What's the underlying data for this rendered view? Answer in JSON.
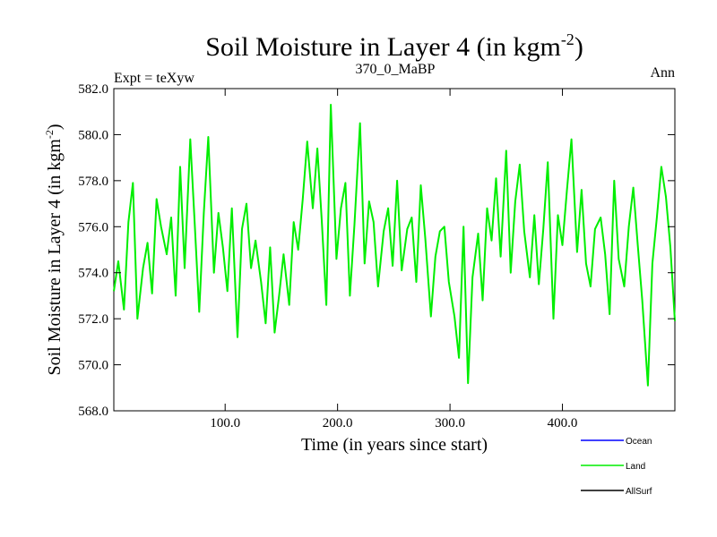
{
  "chart_data": {
    "type": "line",
    "title_main": "Soil Moisture in Layer 4 (in kgm",
    "title_sup": "-2",
    "title_end": ")",
    "subtitle_left": "Expt = teXyw",
    "subtitle_center": "370_0_MaBP",
    "subtitle_right": "Ann",
    "xlabel": "Time (in years since start)",
    "ylabel_main": "Soil Moisture in Layer 4 (in kgm",
    "ylabel_sup": "-2",
    "ylabel_end": ")",
    "xlim": [
      1,
      500
    ],
    "ylim": [
      568.0,
      582.0
    ],
    "x_ticks": [
      100.0,
      200.0,
      300.0,
      400.0
    ],
    "x_tick_labels": [
      "100.0",
      "200.0",
      "300.0",
      "400.0"
    ],
    "y_ticks": [
      568.0,
      570.0,
      572.0,
      574.0,
      576.0,
      578.0,
      580.0,
      582.0
    ],
    "y_tick_labels": [
      "568.0",
      "570.0",
      "572.0",
      "574.0",
      "576.0",
      "578.0",
      "580.0",
      "582.0"
    ],
    "legend_position": "bottom-right",
    "legend": [
      {
        "name": "Ocean",
        "color": "#0000ff"
      },
      {
        "name": "Land",
        "color": "#00ee00"
      },
      {
        "name": "AllSurf",
        "color": "#000000"
      }
    ],
    "series": [
      {
        "name": "Land",
        "color": "#00ee00",
        "x": [
          1,
          5,
          10,
          14,
          18,
          22,
          27,
          31,
          35,
          39,
          43,
          48,
          52,
          56,
          60,
          64,
          69,
          73,
          77,
          81,
          85,
          90,
          94,
          98,
          102,
          106,
          111,
          115,
          119,
          123,
          127,
          132,
          136,
          140,
          144,
          148,
          152,
          157,
          161,
          165,
          169,
          173,
          178,
          182,
          186,
          190,
          194,
          199,
          203,
          207,
          211,
          215,
          220,
          224,
          228,
          232,
          236,
          241,
          245,
          249,
          253,
          257,
          262,
          266,
          270,
          274,
          278,
          283,
          287,
          291,
          295,
          299,
          304,
          308,
          312,
          316,
          320,
          325,
          329,
          333,
          337,
          341,
          345,
          350,
          354,
          358,
          362,
          366,
          371,
          375,
          379,
          383,
          387,
          392,
          396,
          400,
          404,
          408,
          413,
          417,
          421,
          425,
          429,
          434,
          438,
          442,
          446,
          450,
          455,
          459,
          463,
          467,
          471,
          476,
          480,
          484,
          488,
          492,
          496,
          500
        ],
        "values": [
          573.2,
          574.5,
          572.4,
          576.2,
          577.9,
          572.0,
          574.2,
          575.3,
          573.1,
          577.2,
          576.0,
          574.8,
          576.4,
          573.0,
          578.6,
          574.2,
          579.8,
          576.1,
          572.3,
          576.6,
          579.9,
          574.0,
          576.6,
          575.1,
          573.2,
          576.8,
          571.2,
          575.9,
          577.0,
          574.2,
          575.4,
          573.6,
          571.8,
          575.1,
          571.4,
          573.0,
          574.8,
          572.6,
          576.2,
          575.0,
          577.2,
          579.7,
          576.8,
          579.4,
          576.2,
          572.6,
          581.3,
          574.6,
          576.8,
          577.9,
          573.0,
          576.1,
          580.5,
          574.4,
          577.1,
          576.2,
          573.4,
          575.8,
          576.8,
          574.3,
          578.0,
          574.1,
          575.9,
          576.4,
          573.6,
          577.8,
          575.5,
          572.1,
          574.7,
          575.8,
          576.0,
          573.6,
          572.1,
          570.3,
          576.0,
          569.2,
          573.8,
          575.7,
          572.8,
          576.8,
          575.4,
          578.1,
          574.7,
          579.3,
          574.0,
          577.1,
          578.7,
          575.8,
          573.8,
          576.5,
          573.5,
          575.9,
          578.8,
          572.0,
          576.5,
          575.2,
          577.6,
          579.8,
          574.9,
          577.6,
          574.4,
          573.4,
          575.9,
          576.4,
          574.8,
          572.2,
          578.0,
          574.6,
          573.4,
          576.0,
          577.7,
          575.2,
          572.8,
          569.1,
          574.4,
          576.4,
          578.6,
          577.3,
          575.1,
          571.9
        ]
      }
    ]
  }
}
